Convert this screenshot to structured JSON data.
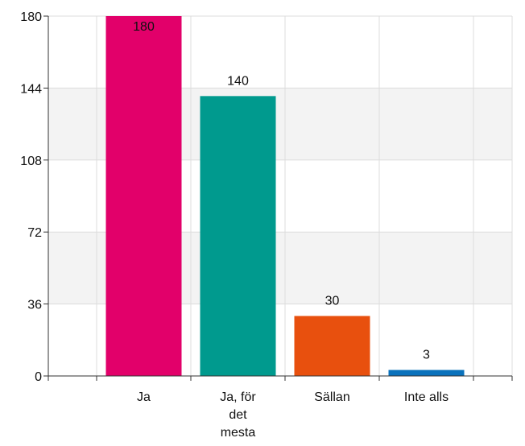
{
  "chart_data": {
    "type": "bar",
    "categories": [
      "Ja",
      "Ja, för det mesta",
      "Sällan",
      "Inte alls"
    ],
    "values": [
      180,
      140,
      30,
      3
    ],
    "colors": [
      "#e2006a",
      "#009a8e",
      "#e8500e",
      "#0a72bc"
    ],
    "ylim": [
      0,
      180
    ],
    "yticks": [
      0,
      36,
      72,
      108,
      144,
      180
    ],
    "grid": true
  }
}
